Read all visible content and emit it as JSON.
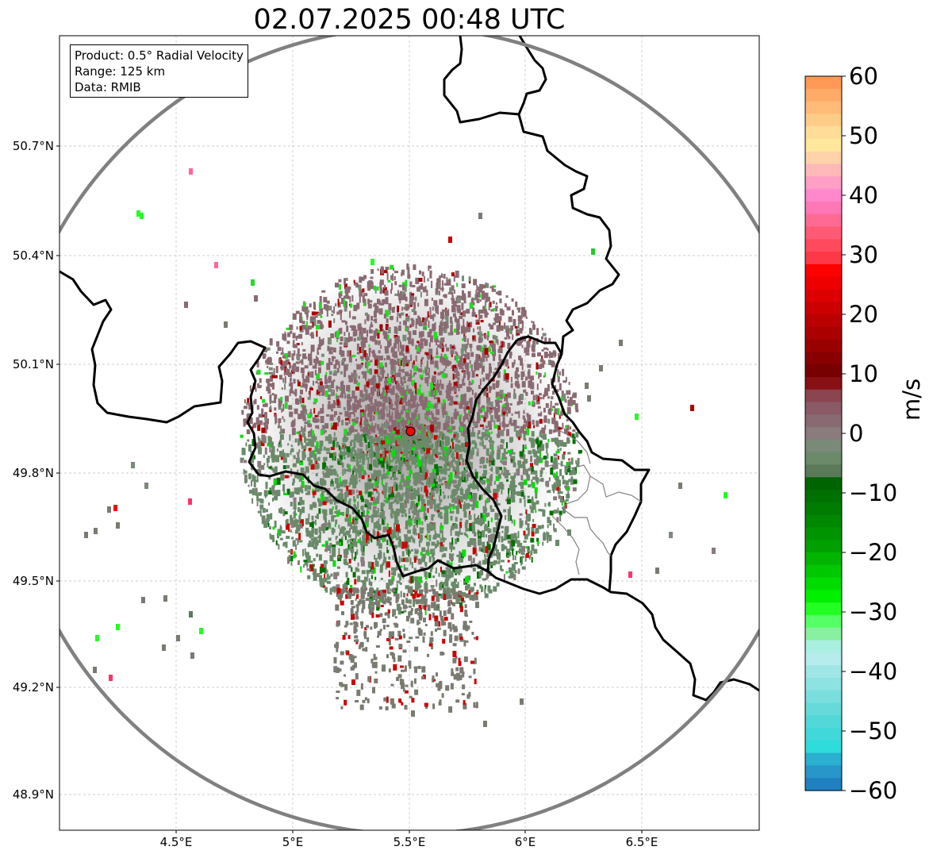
{
  "title": "02.07.2025 00:48 UTC",
  "info_box": {
    "product": "Product: 0.5° Radial Velocity",
    "range": "Range: 125 km",
    "data": "Data: RMIB"
  },
  "map": {
    "lon_range": [
      4.0,
      7.0
    ],
    "lat_range": [
      48.8,
      51.0
    ],
    "radar_site": {
      "lon": 5.505,
      "lat": 49.914
    },
    "range_km": 125,
    "x_ticks": [
      "4.5°E",
      "5°E",
      "5.5°E",
      "6°E",
      "6.5°E"
    ],
    "y_ticks": [
      "50.7°N",
      "50.4°N",
      "50.1°N",
      "49.8°N",
      "49.5°N",
      "49.2°N",
      "48.9°N"
    ],
    "gridlines": true,
    "range_ring_color": "#808080",
    "border_color": "#000000",
    "admin_border_color": "#808080",
    "site_marker_color": "#ff0000"
  },
  "colorbar": {
    "label": "m/s",
    "ticks": [
      "60",
      "50",
      "40",
      "30",
      "20",
      "10",
      "0",
      "−10",
      "−20",
      "−30",
      "−40",
      "−50",
      "−60"
    ],
    "min": -60,
    "max": 60,
    "colors_top_to_bottom": [
      "#ff9955",
      "#ffaa66",
      "#ffbb77",
      "#ffcc88",
      "#ffdd99",
      "#ffe79b",
      "#ffd3a9",
      "#ffb9b9",
      "#ff9fc6",
      "#ff88cc",
      "#ff77b6",
      "#ff6a94",
      "#ff5a75",
      "#ff4a5e",
      "#ff3848",
      "#ff0000",
      "#ee0000",
      "#dd0000",
      "#cc0000",
      "#bb0000",
      "#aa0000",
      "#990000",
      "#880000",
      "#770000",
      "#880f14",
      "#8a4550",
      "#8a5a66",
      "#8a6a72",
      "#8a7b7d",
      "#7a8a78",
      "#6a8a6a",
      "#5a7a5a",
      "#006400",
      "#007000",
      "#007c00",
      "#008800",
      "#009400",
      "#00a000",
      "#00b400",
      "#00c800",
      "#00dc00",
      "#00f000",
      "#22ff22",
      "#55ff66",
      "#88f0a0",
      "#aaf0e0",
      "#b6ecec",
      "#a0e6e6",
      "#8de2e2",
      "#7adede",
      "#66dada",
      "#52d8d8",
      "#40d8d8",
      "#2edcdc",
      "#2ab0d0",
      "#2896c8",
      "#2080c0"
    ]
  }
}
